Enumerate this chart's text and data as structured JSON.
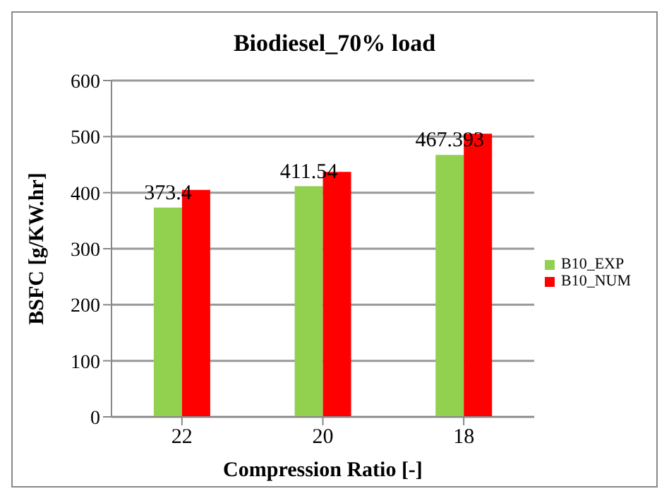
{
  "chart_data": {
    "type": "bar",
    "title": "Biodiesel_70% load",
    "xlabel": "Compression Ratio [-]",
    "ylabel": "BSFC [g/KW.hr]",
    "categories": [
      "22",
      "20",
      "18"
    ],
    "series": [
      {
        "name": "B10_EXP",
        "color": "#92d050",
        "values": [
          373.4,
          411.54,
          467.393
        ],
        "value_labels": [
          "373.4",
          "411.54",
          "467.393"
        ]
      },
      {
        "name": "B10_NUM",
        "color": "#ff0000",
        "values": [
          405,
          437,
          505
        ]
      }
    ],
    "ylim": [
      0,
      600
    ],
    "yticks": [
      0,
      100,
      200,
      300,
      400,
      500,
      600
    ],
    "grid": "y",
    "legend": "right"
  }
}
